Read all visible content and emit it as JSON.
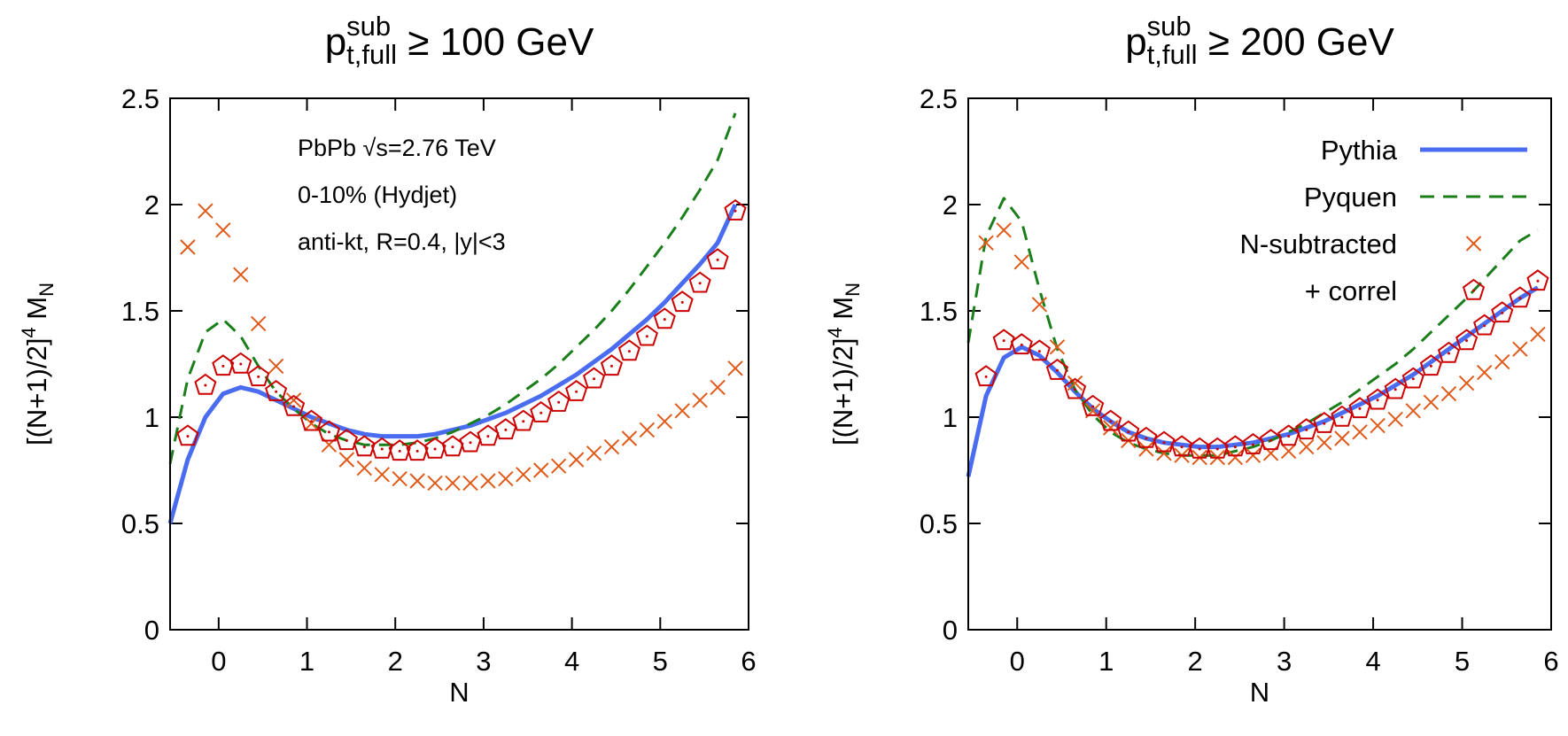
{
  "chart_data": [
    {
      "type": "line",
      "title": {
        "base": "p",
        "sup": "sub",
        "sub": "t,full",
        "rest": " ≥ 100 GeV"
      },
      "xlabel": "N",
      "ylabel": {
        "base": "[(N+1)/2]",
        "sup": "4",
        "mid": " M",
        "sub": "N"
      },
      "xlim": [
        -0.55,
        6
      ],
      "ylim": [
        0,
        2.5
      ],
      "xticks": [
        0,
        1,
        2,
        3,
        4,
        5,
        6
      ],
      "yticks": [
        0,
        0.5,
        1,
        1.5,
        2,
        2.5
      ],
      "annotations": [
        "PbPb √s=2.76 TeV",
        "0-10% (Hydjet)",
        "anti-kt, R=0.4, |y|<3"
      ],
      "x": [
        -0.55,
        -0.35,
        -0.15,
        0.05,
        0.25,
        0.45,
        0.65,
        0.85,
        1.05,
        1.25,
        1.45,
        1.65,
        1.85,
        2.05,
        2.25,
        2.45,
        2.65,
        2.85,
        3.05,
        3.25,
        3.45,
        3.65,
        3.85,
        4.05,
        4.25,
        4.45,
        4.65,
        4.85,
        5.05,
        5.25,
        5.45,
        5.65,
        5.85
      ],
      "series": [
        {
          "style": "solid",
          "color": "#4a6cf0",
          "values": [
            0.5,
            0.8,
            1.0,
            1.11,
            1.14,
            1.12,
            1.08,
            1.04,
            1.0,
            0.97,
            0.94,
            0.92,
            0.91,
            0.91,
            0.91,
            0.92,
            0.94,
            0.96,
            0.99,
            1.02,
            1.06,
            1.1,
            1.15,
            1.2,
            1.26,
            1.32,
            1.39,
            1.46,
            1.54,
            1.63,
            1.72,
            1.82,
            2.0
          ]
        },
        {
          "style": "dashed",
          "color": "#1a7f1a",
          "values": [
            0.78,
            1.18,
            1.4,
            1.46,
            1.38,
            1.24,
            1.12,
            1.04,
            0.97,
            0.92,
            0.89,
            0.87,
            0.87,
            0.87,
            0.88,
            0.9,
            0.93,
            0.97,
            1.01,
            1.06,
            1.12,
            1.18,
            1.25,
            1.33,
            1.41,
            1.5,
            1.6,
            1.71,
            1.82,
            1.94,
            2.07,
            2.21,
            2.43
          ]
        },
        {
          "style": "cross",
          "color": "#e05a1a",
          "values": [
            null,
            1.8,
            1.97,
            1.88,
            1.67,
            1.44,
            1.24,
            1.08,
            0.97,
            0.87,
            0.8,
            0.76,
            0.73,
            0.71,
            0.7,
            0.69,
            0.69,
            0.69,
            0.7,
            0.71,
            0.73,
            0.75,
            0.77,
            0.8,
            0.83,
            0.86,
            0.9,
            0.94,
            0.98,
            1.03,
            1.08,
            1.14,
            1.23
          ]
        },
        {
          "style": "pentagon",
          "color": "#cc0000",
          "values": [
            null,
            0.91,
            1.15,
            1.24,
            1.25,
            1.19,
            1.12,
            1.05,
            0.98,
            0.93,
            0.89,
            0.86,
            0.85,
            0.84,
            0.84,
            0.85,
            0.86,
            0.88,
            0.91,
            0.94,
            0.98,
            1.02,
            1.07,
            1.12,
            1.18,
            1.24,
            1.31,
            1.38,
            1.46,
            1.54,
            1.63,
            1.74,
            1.97
          ]
        }
      ]
    },
    {
      "type": "line",
      "title": {
        "base": "p",
        "sup": "sub",
        "sub": "t,full",
        "rest": " ≥ 200 GeV"
      },
      "xlabel": "N",
      "ylabel": {
        "base": "[(N+1)/2]",
        "sup": "4",
        "mid": " M",
        "sub": "N"
      },
      "xlim": [
        -0.55,
        6
      ],
      "ylim": [
        0,
        2.5
      ],
      "xticks": [
        0,
        1,
        2,
        3,
        4,
        5,
        6
      ],
      "yticks": [
        0,
        0.5,
        1,
        1.5,
        2,
        2.5
      ],
      "legend": "upper right",
      "x": [
        -0.55,
        -0.35,
        -0.15,
        0.05,
        0.25,
        0.45,
        0.65,
        0.85,
        1.05,
        1.25,
        1.45,
        1.65,
        1.85,
        2.05,
        2.25,
        2.45,
        2.65,
        2.85,
        3.05,
        3.25,
        3.45,
        3.65,
        3.85,
        4.05,
        4.25,
        4.45,
        4.65,
        4.85,
        5.05,
        5.25,
        5.45,
        5.65,
        5.85
      ],
      "series": [
        {
          "name": "Pythia",
          "style": "solid",
          "color": "#4a6cf0",
          "values": [
            0.72,
            1.1,
            1.28,
            1.33,
            1.29,
            1.21,
            1.12,
            1.04,
            0.98,
            0.93,
            0.9,
            0.88,
            0.87,
            0.86,
            0.86,
            0.87,
            0.88,
            0.9,
            0.92,
            0.95,
            0.98,
            1.02,
            1.06,
            1.1,
            1.15,
            1.2,
            1.26,
            1.32,
            1.38,
            1.44,
            1.5,
            1.56,
            1.61
          ]
        },
        {
          "name": "Pyquen",
          "style": "dashed",
          "color": "#1a7f1a",
          "values": [
            1.35,
            1.85,
            2.03,
            1.92,
            1.6,
            1.32,
            1.13,
            1.01,
            0.93,
            0.88,
            0.85,
            0.83,
            0.82,
            0.82,
            0.82,
            0.84,
            0.86,
            0.89,
            0.93,
            0.97,
            1.02,
            1.07,
            1.13,
            1.19,
            1.25,
            1.32,
            1.4,
            1.48,
            1.56,
            1.65,
            1.74,
            1.83,
            1.88
          ]
        },
        {
          "name": "N-subtracted",
          "style": "cross",
          "color": "#e05a1a",
          "values": [
            null,
            1.82,
            1.88,
            1.73,
            1.53,
            1.33,
            1.16,
            1.03,
            0.95,
            0.89,
            0.85,
            0.83,
            0.82,
            0.81,
            0.81,
            0.81,
            0.82,
            0.83,
            0.84,
            0.86,
            0.88,
            0.9,
            0.93,
            0.96,
            0.99,
            1.03,
            1.07,
            1.11,
            1.16,
            1.21,
            1.26,
            1.32,
            1.39
          ]
        },
        {
          "name": "+ correl",
          "style": "pentagon",
          "color": "#cc0000",
          "values": [
            null,
            1.19,
            1.36,
            1.34,
            1.31,
            1.22,
            1.13,
            1.05,
            0.98,
            0.93,
            0.9,
            0.88,
            0.86,
            0.85,
            0.85,
            0.86,
            0.87,
            0.89,
            0.91,
            0.94,
            0.97,
            1.0,
            1.04,
            1.08,
            1.13,
            1.18,
            1.24,
            1.3,
            1.36,
            1.43,
            1.49,
            1.56,
            1.64
          ]
        }
      ]
    }
  ]
}
